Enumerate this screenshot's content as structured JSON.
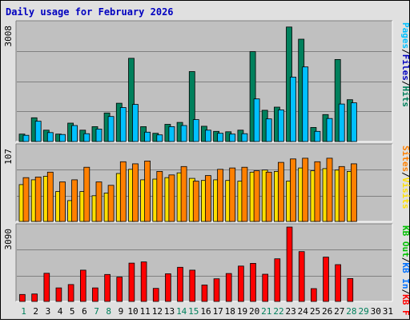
{
  "chart_data": [
    {
      "type": "bar",
      "panel": "top",
      "title": "Daily usage for February 2026",
      "ymax_label": "3008",
      "ylabel_parts": [
        {
          "text": "Hits",
          "color": "#00805c"
        },
        {
          "text": "/",
          "color": "#000000"
        },
        {
          "text": "Files",
          "color": "#0000c0"
        },
        {
          "text": "/",
          "color": "#000000"
        },
        {
          "text": "Pages",
          "color": "#00c0ff"
        }
      ],
      "categories": [
        "1",
        "2",
        "3",
        "4",
        "5",
        "6",
        "7",
        "8",
        "9",
        "10",
        "11",
        "12",
        "13",
        "14",
        "15",
        "16",
        "17",
        "18",
        "19",
        "20",
        "21",
        "22",
        "23",
        "24",
        "25",
        "26",
        "27",
        "28"
      ],
      "series": [
        {
          "name": "Hits",
          "color": "#00805c",
          "values": [
            190,
            608,
            290,
            190,
            470,
            290,
            380,
            730,
            980,
            2130,
            380,
            210,
            440,
            490,
            1790,
            390,
            260,
            250,
            290,
            2300,
            800,
            880,
            2930,
            2620,
            360,
            690,
            2100,
            1070
          ]
        },
        {
          "name": "Files",
          "color": "#00c0ff",
          "values": [
            160,
            520,
            230,
            180,
            410,
            200,
            320,
            640,
            870,
            950,
            240,
            170,
            380,
            410,
            560,
            290,
            210,
            190,
            200,
            1090,
            580,
            810,
            1650,
            1910,
            260,
            590,
            960,
            990
          ]
        }
      ],
      "ylim": [
        0,
        3008
      ]
    },
    {
      "type": "bar",
      "panel": "middle",
      "ymax_label": "107",
      "ylabel_parts": [
        {
          "text": "Visits",
          "color": "#ffe000"
        },
        {
          "text": "/",
          "color": "#000000"
        },
        {
          "text": "Sites",
          "color": "#ff8000"
        }
      ],
      "categories": [
        "1",
        "2",
        "3",
        "4",
        "5",
        "6",
        "7",
        "8",
        "9",
        "10",
        "11",
        "12",
        "13",
        "14",
        "15",
        "16",
        "17",
        "18",
        "19",
        "20",
        "21",
        "22",
        "23",
        "24",
        "25",
        "26",
        "27",
        "28"
      ],
      "series": [
        {
          "name": "Visits",
          "color": "#ffe000",
          "values": [
            53,
            60,
            65,
            43,
            30,
            43,
            37,
            41,
            69,
            75,
            60,
            61,
            63,
            70,
            62,
            59,
            60,
            59,
            58,
            71,
            74,
            72,
            58,
            77,
            73,
            76,
            74,
            72
          ]
        },
        {
          "name": "Sites",
          "color": "#ff8000",
          "values": [
            63,
            64,
            71,
            57,
            60,
            78,
            57,
            52,
            86,
            83,
            87,
            72,
            67,
            79,
            58,
            66,
            75,
            77,
            78,
            73,
            71,
            85,
            90,
            91,
            86,
            91,
            79,
            83
          ]
        }
      ],
      "ylim": [
        0,
        107
      ]
    },
    {
      "type": "bar",
      "panel": "bottom",
      "ymax_label": "3090",
      "ylabel_parts": [
        {
          "text": "KB F",
          "color": "#ff0000"
        },
        {
          "text": "/",
          "color": "#000000"
        },
        {
          "text": "KB In",
          "color": "#0070ff"
        },
        {
          "text": "/",
          "color": "#000000"
        },
        {
          "text": "KB Out",
          "color": "#00c000"
        }
      ],
      "categories": [
        "1",
        "2",
        "3",
        "4",
        "5",
        "6",
        "7",
        "8",
        "9",
        "10",
        "11",
        "12",
        "13",
        "14",
        "15",
        "16",
        "17",
        "18",
        "19",
        "20",
        "21",
        "22",
        "23",
        "24",
        "25",
        "26",
        "27",
        "28"
      ],
      "series": [
        {
          "name": "KB F",
          "color": "#ff0000",
          "values": [
            290,
            310,
            1170,
            560,
            700,
            1300,
            560,
            1120,
            1010,
            1590,
            1640,
            540,
            1150,
            1420,
            1300,
            680,
            940,
            1160,
            1470,
            1580,
            1130,
            1770,
            3090,
            2070,
            530,
            1840,
            1530,
            950
          ]
        }
      ],
      "ylim": [
        0,
        3090
      ]
    }
  ],
  "xaxis": {
    "days": [
      "1",
      "2",
      "3",
      "4",
      "5",
      "6",
      "7",
      "8",
      "9",
      "10",
      "11",
      "12",
      "13",
      "14",
      "15",
      "16",
      "17",
      "18",
      "19",
      "20",
      "21",
      "22",
      "23",
      "24",
      "25",
      "26",
      "27",
      "28",
      "29",
      "30",
      "31"
    ],
    "weekend_days": [
      "1",
      "7",
      "8",
      "14",
      "15",
      "21",
      "22",
      "28",
      "29"
    ],
    "weekend_color": "#00805c",
    "weekday_color": "#000000"
  },
  "colors": {
    "panel_bg": "#c0c0c0",
    "outer_bg": "#e0e0e0",
    "title": "#0000c0",
    "grid": "#808080"
  }
}
